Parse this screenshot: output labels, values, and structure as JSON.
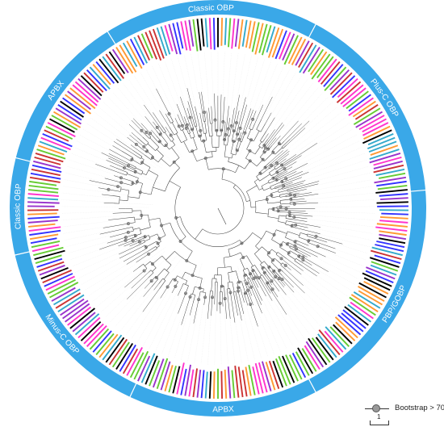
{
  "ring": {
    "color": "#3aa8e8",
    "clades": [
      {
        "name": "Classic OBP",
        "start": -32,
        "end": 28
      },
      {
        "name": "Plus-C OBP",
        "start": 28,
        "end": 85
      },
      {
        "name": "PBP/GOBP",
        "start": 85,
        "end": 152
      },
      {
        "name": "APBX",
        "start": 152,
        "end": 205
      },
      {
        "name": "Minus-C OBP",
        "start": 205,
        "end": 257
      },
      {
        "name": "Classic OBP",
        "start": 257,
        "end": 284
      },
      {
        "name": "APBX",
        "start": 284,
        "end": 328
      }
    ]
  },
  "tip_colors": [
    "#ff33cc",
    "#3333ff",
    "#66cc33",
    "#ff9933",
    "#000000",
    "#9933cc",
    "#cc3333",
    "#33aacc"
  ],
  "legend": {
    "bootstrap_label": "Bootstrap > 70",
    "scale_label": "1"
  }
}
